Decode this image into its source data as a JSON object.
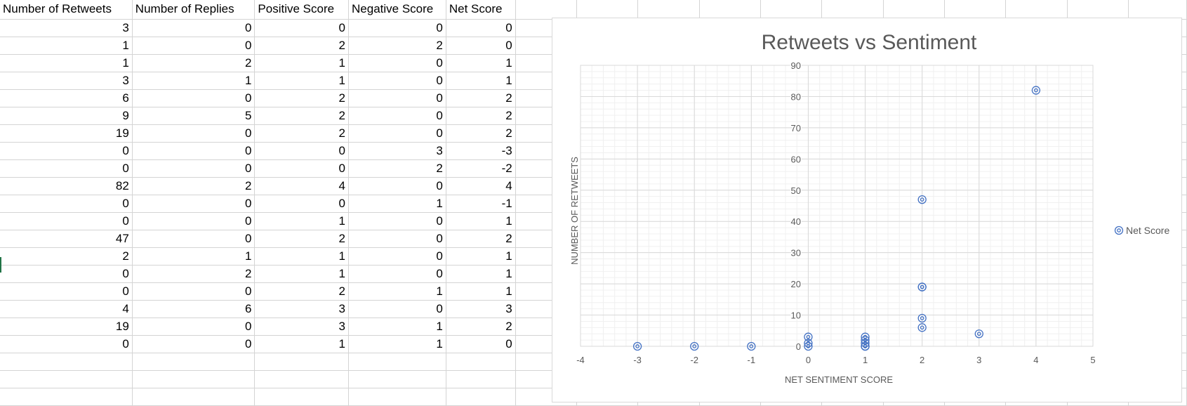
{
  "sheet": {
    "headers": [
      "Number of Retweets",
      "Number of Replies",
      "Positive Score",
      "Negative Score",
      "Net Score"
    ],
    "rows": [
      [
        3,
        0,
        0,
        0,
        0
      ],
      [
        1,
        0,
        2,
        2,
        0
      ],
      [
        1,
        2,
        1,
        0,
        1
      ],
      [
        3,
        1,
        1,
        0,
        1
      ],
      [
        6,
        0,
        2,
        0,
        2
      ],
      [
        9,
        5,
        2,
        0,
        2
      ],
      [
        19,
        0,
        2,
        0,
        2
      ],
      [
        0,
        0,
        0,
        3,
        -3
      ],
      [
        0,
        0,
        0,
        2,
        -2
      ],
      [
        82,
        2,
        4,
        0,
        4
      ],
      [
        0,
        0,
        0,
        1,
        -1
      ],
      [
        0,
        0,
        1,
        0,
        1
      ],
      [
        47,
        0,
        2,
        0,
        2
      ],
      [
        2,
        1,
        1,
        0,
        1
      ],
      [
        0,
        2,
        1,
        0,
        1
      ],
      [
        0,
        0,
        2,
        1,
        1
      ],
      [
        4,
        6,
        3,
        0,
        3
      ],
      [
        19,
        0,
        3,
        1,
        2
      ],
      [
        0,
        0,
        1,
        1,
        0
      ]
    ]
  },
  "chart_data": {
    "type": "scatter",
    "title": "Retweets vs Sentiment",
    "xlabel": "NET SENTIMENT SCORE",
    "ylabel": "NUMBER OF RETWEETS",
    "xlim": [
      -4,
      5
    ],
    "ylim": [
      0,
      90
    ],
    "xticks": [
      -4,
      -3,
      -2,
      -1,
      0,
      1,
      2,
      3,
      4,
      5
    ],
    "yticks": [
      0,
      10,
      20,
      30,
      40,
      50,
      60,
      70,
      80,
      90
    ],
    "grid": true,
    "legend": "right",
    "color": "#4472c4",
    "series": [
      {
        "name": "Net Score",
        "x": [
          0,
          0,
          1,
          1,
          2,
          2,
          2,
          -3,
          -2,
          4,
          -1,
          1,
          2,
          1,
          1,
          1,
          3,
          2,
          0
        ],
        "y": [
          3,
          1,
          1,
          3,
          6,
          9,
          19,
          0,
          0,
          82,
          0,
          0,
          47,
          2,
          0,
          0,
          4,
          19,
          0
        ]
      }
    ]
  }
}
